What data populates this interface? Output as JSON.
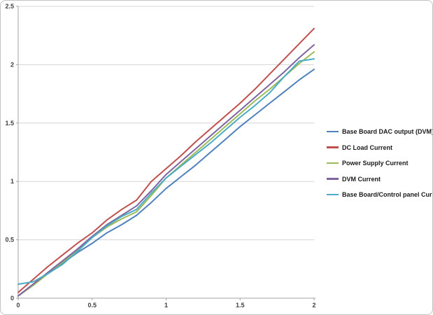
{
  "chart_data": {
    "type": "line",
    "title": "",
    "xlabel": "",
    "ylabel": "",
    "xlim": [
      0,
      2
    ],
    "ylim": [
      0,
      2.5
    ],
    "x_tick_values": [
      0,
      0.5,
      1,
      1.5,
      2
    ],
    "x_tick_labels": [
      "0",
      "0.5",
      "1",
      "1.5",
      "2"
    ],
    "y_tick_values": [
      0,
      0.5,
      1,
      1.5,
      2,
      2.5
    ],
    "y_tick_labels": [
      "0",
      "0.5",
      "1",
      "1.5",
      "2",
      "2.5"
    ],
    "grid": "horizontal-major",
    "legend_position": "right",
    "x": [
      0,
      0.1,
      0.2,
      0.3,
      0.4,
      0.5,
      0.6,
      0.7,
      0.8,
      0.9,
      1.0,
      1.1,
      1.2,
      1.3,
      1.4,
      1.5,
      1.6,
      1.7,
      1.8,
      1.9,
      2.0
    ],
    "series": [
      {
        "name": "Base Board DAC output (DVM)",
        "color": "#4F81BD",
        "values": [
          0.02,
          0.11,
          0.21,
          0.3,
          0.39,
          0.47,
          0.56,
          0.63,
          0.71,
          0.82,
          0.94,
          1.04,
          1.14,
          1.25,
          1.36,
          1.47,
          1.57,
          1.67,
          1.77,
          1.87,
          1.96
        ]
      },
      {
        "name": "DC Load Current",
        "color": "#C0504D",
        "values": [
          0.05,
          0.16,
          0.27,
          0.37,
          0.47,
          0.56,
          0.67,
          0.76,
          0.84,
          1.0,
          1.11,
          1.22,
          1.34,
          1.45,
          1.56,
          1.67,
          1.79,
          1.92,
          2.05,
          2.18,
          2.31
        ]
      },
      {
        "name": "Power Supply Current",
        "color": "#9BBB59",
        "values": [
          0.02,
          0.11,
          0.21,
          0.31,
          0.41,
          0.52,
          0.61,
          0.68,
          0.74,
          0.88,
          1.03,
          1.14,
          1.25,
          1.36,
          1.47,
          1.58,
          1.69,
          1.79,
          1.9,
          2.01,
          2.11
        ]
      },
      {
        "name": "DVM Current",
        "color": "#8064A2",
        "values": [
          0.02,
          0.12,
          0.22,
          0.32,
          0.42,
          0.53,
          0.63,
          0.71,
          0.79,
          0.92,
          1.06,
          1.17,
          1.28,
          1.39,
          1.5,
          1.61,
          1.72,
          1.83,
          1.94,
          2.06,
          2.17
        ]
      },
      {
        "name": "Base Board/Control panel Current",
        "color": "#4BACC6",
        "values": [
          0.12,
          0.14,
          0.21,
          0.29,
          0.4,
          0.52,
          0.62,
          0.7,
          0.76,
          0.9,
          1.03,
          1.13,
          1.23,
          1.33,
          1.44,
          1.55,
          1.65,
          1.76,
          1.9,
          2.03,
          2.05
        ]
      }
    ]
  },
  "colors": {
    "axis_line": "#a3a3a3",
    "gridline": "#d5d5d5",
    "tick_label": "#404040",
    "legend_text": "#1a1a1a",
    "chart_border": "#c3c3c3",
    "background": "#ffffff"
  }
}
